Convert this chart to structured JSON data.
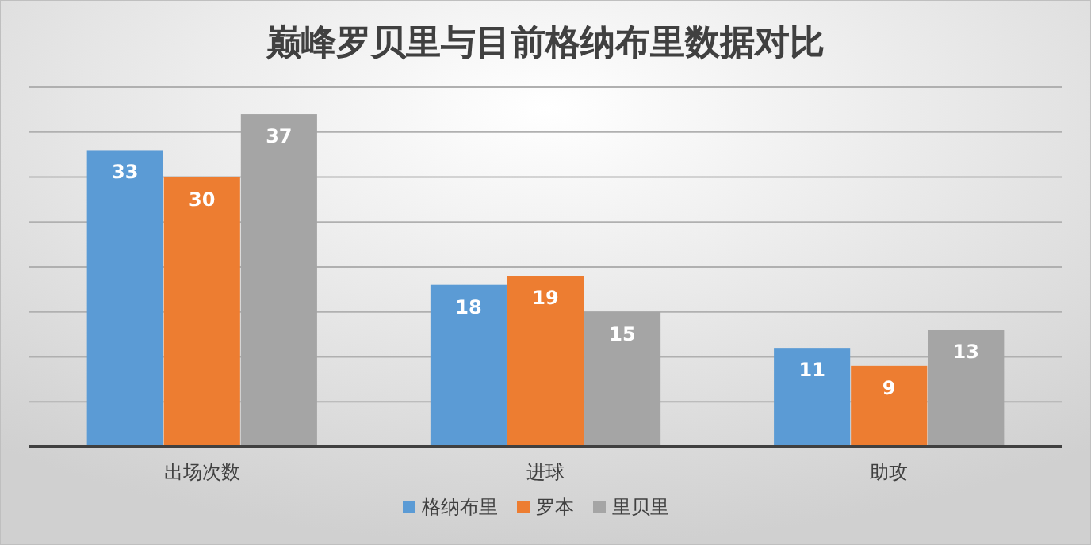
{
  "chart_data": {
    "type": "bar",
    "title": "巅峰罗贝里与目前格纳布里数据对比",
    "categories": [
      "出场次数",
      "进球",
      "助攻"
    ],
    "series": [
      {
        "name": "格纳布里",
        "color": "#5b9bd5",
        "values": [
          33,
          18,
          11
        ]
      },
      {
        "name": "罗本",
        "color": "#ed7d31",
        "values": [
          30,
          19,
          9
        ]
      },
      {
        "name": "里贝里",
        "color": "#a5a5a5",
        "values": [
          37,
          15,
          13
        ]
      }
    ],
    "ylim": [
      0,
      40
    ],
    "yticks": [
      {
        "value": 0,
        "label": null
      },
      {
        "value": 5,
        "label": null
      },
      {
        "value": 10,
        "label": null
      },
      {
        "value": 15,
        "label": null
      },
      {
        "value": 20,
        "label": null
      },
      {
        "value": 25,
        "label": null
      },
      {
        "value": 30,
        "label": null
      },
      {
        "value": 35,
        "label": null
      },
      {
        "value": 40,
        "label": null
      }
    ],
    "tick_labels": "x",
    "grid": "y",
    "data_labels": true,
    "legend": "bottom"
  }
}
